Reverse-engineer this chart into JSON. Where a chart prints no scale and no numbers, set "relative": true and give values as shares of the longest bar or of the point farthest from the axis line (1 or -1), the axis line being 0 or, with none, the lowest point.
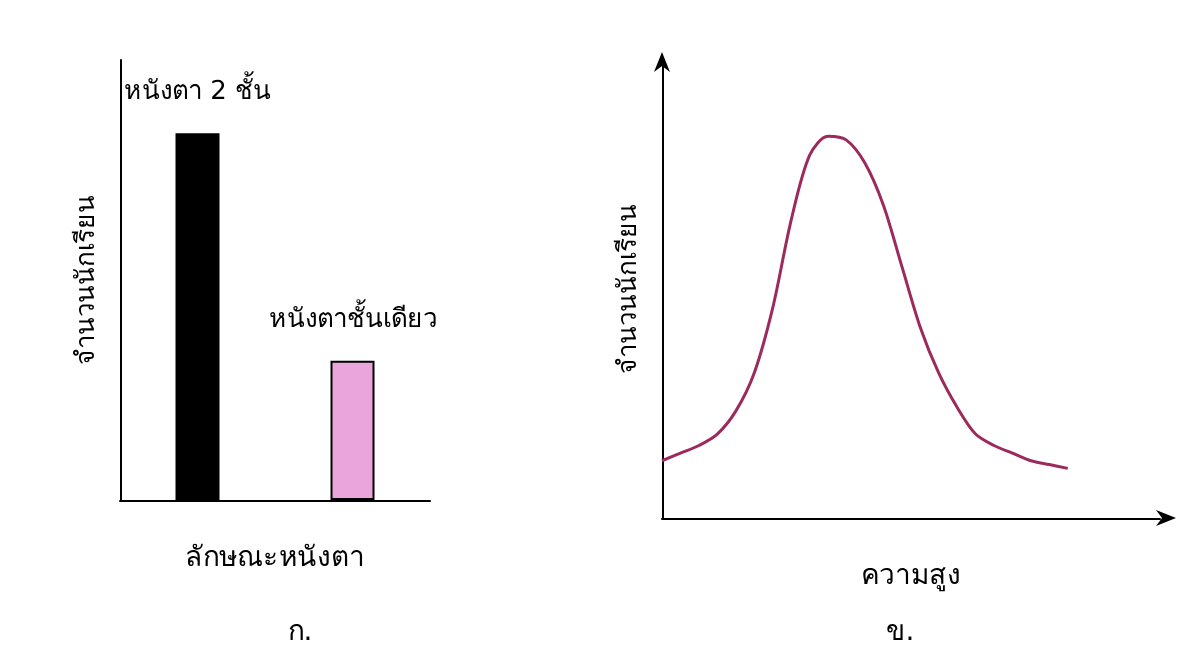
{
  "chart_data": [
    {
      "type": "bar",
      "relative": true,
      "xlabel": "ลักษณะหนังตา",
      "ylabel": "จำนวนนักเรียน",
      "annotations": [
        "ก."
      ],
      "categories": [
        "หนังตา 2 ชั้น",
        "หนังตาชั้นเดียว"
      ],
      "values": [
        1,
        0.38
      ],
      "colors": [
        "#000000",
        "#eaa6dc"
      ],
      "grid": false
    },
    {
      "type": "line",
      "relative": true,
      "xlabel": "ความสูง",
      "ylabel": "จำนวนนักเรียน",
      "annotations": [
        "ข."
      ],
      "categories": [
        null,
        null,
        null,
        null,
        null,
        null,
        null,
        null,
        null,
        null,
        null,
        null,
        null,
        null,
        null,
        null,
        null,
        null,
        null,
        null,
        null,
        null,
        null,
        null,
        null,
        null,
        null,
        null
      ],
      "series": [
        {
          "color": "#9c2a5c",
          "values": [
            0.15,
            0.17,
            0.19,
            0.22,
            0.28,
            0.38,
            0.55,
            0.78,
            0.95,
            1.0,
            0.99,
            0.93,
            0.82,
            0.66,
            0.5,
            0.38,
            0.29,
            0.22,
            0.19,
            0.17,
            0.15,
            0.14,
            0.13,
            null,
            null,
            null,
            null,
            null
          ]
        }
      ],
      "grid": false
    }
  ]
}
